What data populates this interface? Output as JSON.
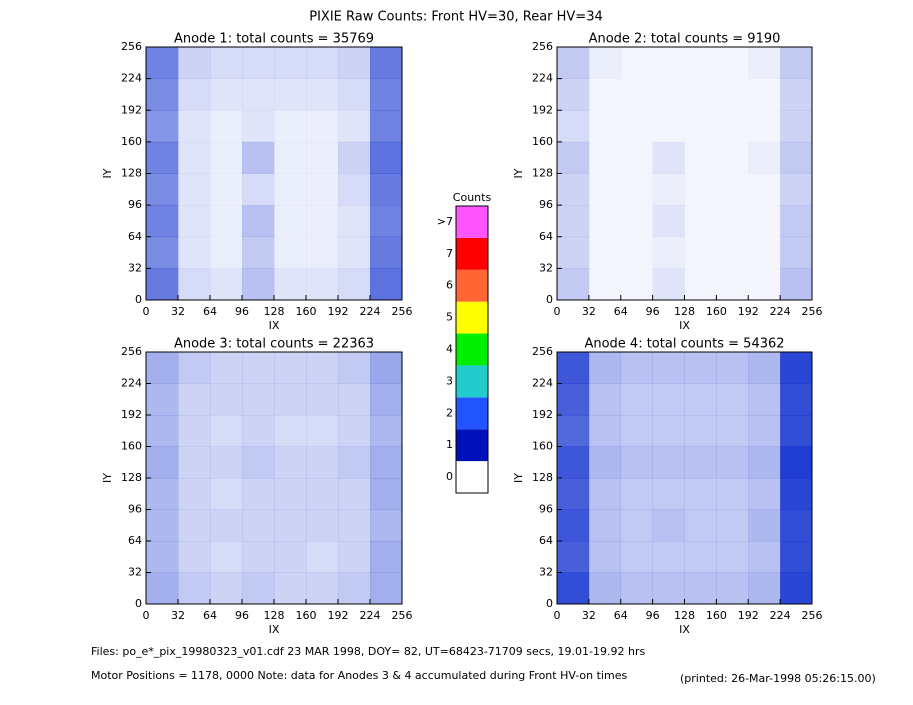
{
  "title": "PIXIE Raw Counts:  Front HV=30, Rear HV=34",
  "chart_data": [
    {
      "type": "heatmap",
      "title": "Anode 1: total counts = 35769",
      "xlabel": "IX",
      "ylabel": "IY",
      "xlim": [
        0,
        256
      ],
      "ylim": [
        0,
        256
      ],
      "xticks": [
        0,
        32,
        64,
        96,
        128,
        160,
        192,
        224,
        256
      ],
      "yticks": [
        0,
        32,
        64,
        96,
        128,
        160,
        192,
        224,
        256
      ],
      "z": [
        [
          1.5,
          0.4,
          0.3,
          0.7,
          0.3,
          0.3,
          0.4,
          1.6
        ],
        [
          1.3,
          0.3,
          0.2,
          0.6,
          0.2,
          0.2,
          0.3,
          1.5
        ],
        [
          1.4,
          0.3,
          0.2,
          0.7,
          0.2,
          0.2,
          0.3,
          1.4
        ],
        [
          1.3,
          0.3,
          0.2,
          0.4,
          0.2,
          0.2,
          0.4,
          1.5
        ],
        [
          1.4,
          0.3,
          0.2,
          0.7,
          0.2,
          0.2,
          0.5,
          1.6
        ],
        [
          1.2,
          0.3,
          0.2,
          0.3,
          0.2,
          0.2,
          0.3,
          1.4
        ],
        [
          1.3,
          0.4,
          0.3,
          0.3,
          0.3,
          0.3,
          0.4,
          1.4
        ],
        [
          1.4,
          0.5,
          0.4,
          0.4,
          0.4,
          0.4,
          0.5,
          1.5
        ]
      ]
    },
    {
      "type": "heatmap",
      "title": "Anode 2: total counts = 9190",
      "xlabel": "IX",
      "ylabel": "IY",
      "xlim": [
        0,
        256
      ],
      "ylim": [
        0,
        256
      ],
      "xticks": [
        0,
        32,
        64,
        96,
        128,
        160,
        192,
        224,
        256
      ],
      "yticks": [
        0,
        32,
        64,
        96,
        128,
        160,
        192,
        224,
        256
      ],
      "z": [
        [
          0.6,
          0.1,
          0.1,
          0.3,
          0.1,
          0.1,
          0.1,
          0.7
        ],
        [
          0.5,
          0.1,
          0.1,
          0.2,
          0.1,
          0.1,
          0.1,
          0.6
        ],
        [
          0.5,
          0.1,
          0.1,
          0.3,
          0.1,
          0.1,
          0.1,
          0.6
        ],
        [
          0.5,
          0.1,
          0.1,
          0.2,
          0.1,
          0.1,
          0.1,
          0.5
        ],
        [
          0.6,
          0.1,
          0.1,
          0.3,
          0.1,
          0.1,
          0.2,
          0.6
        ],
        [
          0.4,
          0.1,
          0.1,
          0.1,
          0.1,
          0.1,
          0.1,
          0.5
        ],
        [
          0.5,
          0.1,
          0.1,
          0.1,
          0.1,
          0.1,
          0.1,
          0.5
        ],
        [
          0.6,
          0.2,
          0.1,
          0.1,
          0.1,
          0.1,
          0.2,
          0.6
        ]
      ]
    },
    {
      "type": "heatmap",
      "title": "Anode 3: total counts = 22363",
      "xlabel": "IX",
      "ylabel": "IY",
      "xlim": [
        0,
        256
      ],
      "ylim": [
        0,
        256
      ],
      "xticks": [
        0,
        32,
        64,
        96,
        128,
        160,
        192,
        224,
        256
      ],
      "yticks": [
        0,
        32,
        64,
        96,
        128,
        160,
        192,
        224,
        256
      ],
      "z": [
        [
          0.9,
          0.6,
          0.5,
          0.6,
          0.5,
          0.5,
          0.6,
          0.9
        ],
        [
          0.8,
          0.5,
          0.4,
          0.5,
          0.5,
          0.4,
          0.5,
          0.9
        ],
        [
          0.8,
          0.5,
          0.5,
          0.5,
          0.5,
          0.5,
          0.5,
          0.8
        ],
        [
          0.8,
          0.5,
          0.4,
          0.5,
          0.5,
          0.5,
          0.5,
          0.9
        ],
        [
          0.9,
          0.5,
          0.5,
          0.6,
          0.5,
          0.5,
          0.6,
          0.9
        ],
        [
          0.8,
          0.5,
          0.4,
          0.5,
          0.4,
          0.4,
          0.5,
          0.8
        ],
        [
          0.8,
          0.5,
          0.5,
          0.5,
          0.5,
          0.5,
          0.5,
          0.9
        ],
        [
          0.9,
          0.6,
          0.5,
          0.5,
          0.5,
          0.5,
          0.6,
          1.0
        ]
      ]
    },
    {
      "type": "heatmap",
      "title": "Anode 4: total counts = 54362",
      "xlabel": "IX",
      "ylabel": "IY",
      "xlim": [
        0,
        256
      ],
      "ylim": [
        0,
        256
      ],
      "xticks": [
        0,
        32,
        64,
        96,
        128,
        160,
        192,
        224,
        256
      ],
      "yticks": [
        0,
        32,
        64,
        96,
        128,
        160,
        192,
        224,
        256
      ],
      "z": [
        [
          2.0,
          0.8,
          0.7,
          0.7,
          0.7,
          0.7,
          0.8,
          2.1
        ],
        [
          1.8,
          0.7,
          0.6,
          0.6,
          0.6,
          0.6,
          0.7,
          2.0
        ],
        [
          1.9,
          0.7,
          0.6,
          0.7,
          0.6,
          0.6,
          0.8,
          2.0
        ],
        [
          1.8,
          0.7,
          0.6,
          0.6,
          0.6,
          0.6,
          0.7,
          2.1
        ],
        [
          1.9,
          0.8,
          0.7,
          0.7,
          0.7,
          0.7,
          0.8,
          2.2
        ],
        [
          1.7,
          0.7,
          0.6,
          0.6,
          0.6,
          0.6,
          0.7,
          2.0
        ],
        [
          1.8,
          0.7,
          0.6,
          0.6,
          0.6,
          0.6,
          0.7,
          2.0
        ],
        [
          1.9,
          0.8,
          0.7,
          0.7,
          0.7,
          0.7,
          0.8,
          2.1
        ]
      ]
    }
  ],
  "colorbar": {
    "title": "Counts",
    "ticks": [
      0,
      1,
      2,
      3,
      4,
      5,
      6,
      7,
      {
        "value": 8,
        "label": ">7"
      }
    ],
    "colors": [
      "#ffffff",
      "#0011bb",
      "#2255ff",
      "#22cccc",
      "#00ee00",
      "#ffff00",
      "#ff6633",
      "#ff0000",
      "#ff55ff"
    ]
  },
  "footer": {
    "files": "Files: po_e*_pix_19980323_v01.cdf    23 MAR 1998, DOY= 82, UT=68423-71709 secs, 19.01-19.92 hrs",
    "motor": "Motor Positions = 1178, 0000    Note: data for Anodes 3 & 4 accumulated during Front HV-on times",
    "printed": "(printed: 26-Mar-1998 05:26:15.00)"
  }
}
